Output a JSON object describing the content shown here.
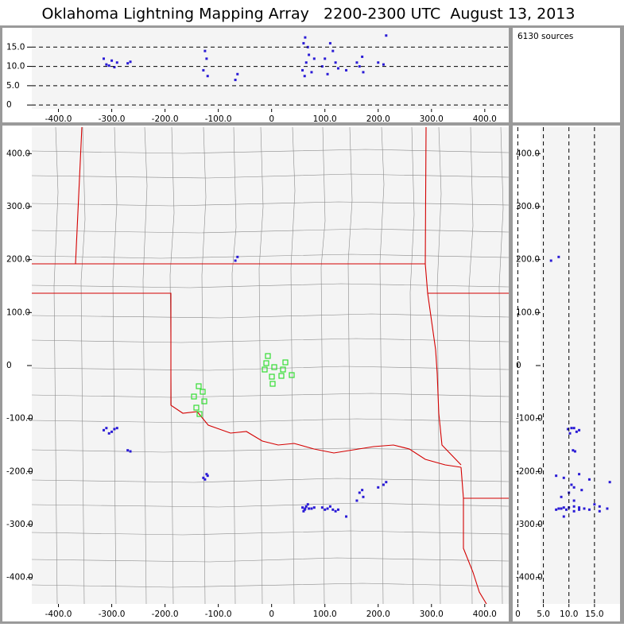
{
  "chart_data": {
    "type": "lma",
    "title": "Oklahoma Lightning Mapping Array   2200-2300 UTC  August 13, 2013",
    "source_count": "6130 sources",
    "color": "#2a1bd6",
    "xlim": [
      -450,
      445
    ],
    "xticks": [
      {
        "value": -400,
        "label": "-400.0"
      },
      {
        "value": -300,
        "label": "-300.0"
      },
      {
        "value": -200,
        "label": "-200.0"
      },
      {
        "value": -100,
        "label": "-100.0"
      },
      0,
      {
        "value": 100,
        "label": "100.0"
      },
      {
        "value": 200,
        "label": "200.0"
      },
      {
        "value": 300,
        "label": "300.0"
      },
      {
        "value": 400,
        "label": "400.0"
      }
    ],
    "ylim": [
      -450,
      450
    ],
    "yticks": [
      {
        "value": -400,
        "label": "-400.0"
      },
      {
        "value": -300,
        "label": "-300.0"
      },
      {
        "value": -200,
        "label": "-200.0"
      },
      {
        "value": -100,
        "label": "-100.0"
      },
      0,
      {
        "value": 100,
        "label": "100.0"
      },
      {
        "value": 200,
        "label": "200.0"
      },
      {
        "value": 300,
        "label": "300.0"
      },
      {
        "value": 400,
        "label": "400.0"
      }
    ],
    "altlim": [
      -1,
      20
    ],
    "altticks": [
      0,
      {
        "value": 5,
        "label": "5.0"
      },
      {
        "value": 10,
        "label": "10.0"
      },
      {
        "value": 15,
        "label": "15.0"
      }
    ],
    "alt_grid": true,
    "sources": {
      "x": [
        -310,
        -300,
        -295,
        -315,
        -305,
        -290,
        -270,
        -265,
        -128,
        -122,
        -125,
        -120,
        -68,
        -64,
        58,
        62,
        65,
        70,
        60,
        75,
        80,
        68,
        63,
        95,
        100,
        105,
        115,
        120,
        110,
        125,
        165,
        170,
        172,
        160,
        140,
        210,
        200,
        215
      ],
      "y": [
        -118,
        -125,
        -120,
        -122,
        -128,
        -118,
        -160,
        -162,
        -212,
        -205,
        -215,
        -208,
        198,
        205,
        -268,
        -272,
        -266,
        -270,
        -275,
        -270,
        -268,
        -262,
        -270,
        -268,
        -272,
        -270,
        -272,
        -275,
        -266,
        -272,
        -240,
        -235,
        -248,
        -255,
        -285,
        -225,
        -230,
        -220
      ],
      "alt": [
        10.5,
        11.5,
        9.8,
        12,
        10.2,
        11,
        10.8,
        11.2,
        9,
        12,
        14,
        7.5,
        6.5,
        8,
        9,
        7.5,
        11,
        13,
        16,
        8.5,
        12,
        15,
        17.5,
        10,
        12,
        8,
        14,
        11,
        16,
        9.5,
        10,
        12.5,
        8.5,
        11,
        9,
        10.5,
        11,
        18
      ]
    }
  }
}
